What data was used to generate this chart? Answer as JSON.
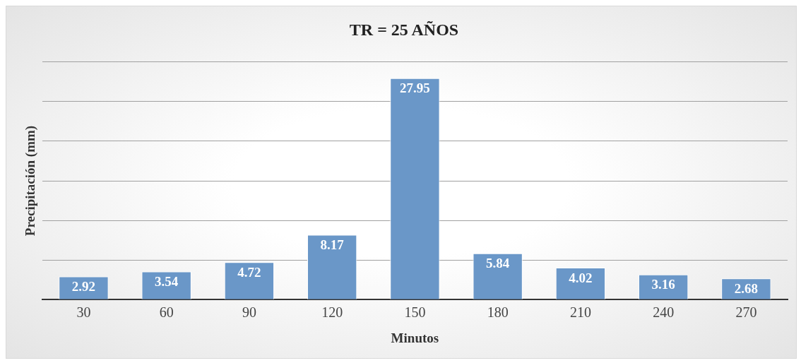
{
  "chart_data": {
    "type": "bar",
    "title": "TR = 25 AÑOS",
    "xlabel": "Minutos",
    "ylabel": "Precipitación (mm)",
    "categories": [
      "30",
      "60",
      "90",
      "120",
      "150",
      "180",
      "210",
      "240",
      "270"
    ],
    "values": [
      2.92,
      3.54,
      4.72,
      8.17,
      27.95,
      5.84,
      4.02,
      3.16,
      2.68
    ],
    "color": "#6a97c8",
    "ylim": [
      0,
      30
    ],
    "grid": "y",
    "tick_labels": "x",
    "data_labels": true,
    "legend": false
  }
}
